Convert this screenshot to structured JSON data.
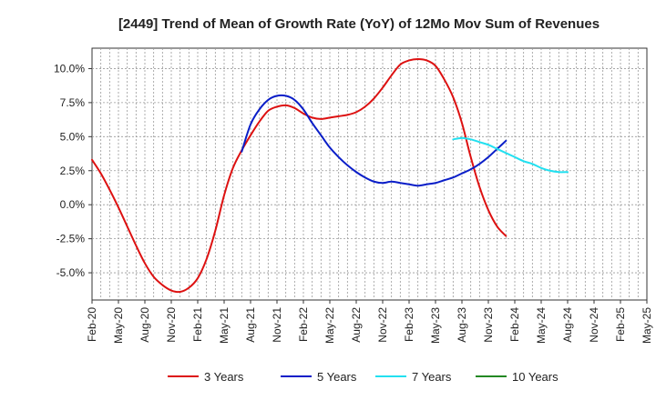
{
  "chart_data": {
    "type": "line",
    "title": "[2449]  Trend of Mean of Growth Rate (YoY) of 12Mo Mov Sum of Revenues",
    "xlabel": "",
    "ylabel": "",
    "ylim": [
      -7.0,
      11.5
    ],
    "y_ticks": [
      {
        "value": -5.0,
        "label": "-5.0%"
      },
      {
        "value": -2.5,
        "label": "-2.5%"
      },
      {
        "value": 0.0,
        "label": "0.0%"
      },
      {
        "value": 2.5,
        "label": "2.5%"
      },
      {
        "value": 5.0,
        "label": "5.0%"
      },
      {
        "value": 7.5,
        "label": "7.5%"
      },
      {
        "value": 10.0,
        "label": "10.0%"
      }
    ],
    "x_range": [
      0,
      63
    ],
    "x_ticks": [
      {
        "index": 0,
        "label": "Feb-20"
      },
      {
        "index": 3,
        "label": "May-20"
      },
      {
        "index": 6,
        "label": "Aug-20"
      },
      {
        "index": 9,
        "label": "Nov-20"
      },
      {
        "index": 12,
        "label": "Feb-21"
      },
      {
        "index": 15,
        "label": "May-21"
      },
      {
        "index": 18,
        "label": "Aug-21"
      },
      {
        "index": 21,
        "label": "Nov-21"
      },
      {
        "index": 24,
        "label": "Feb-22"
      },
      {
        "index": 27,
        "label": "May-22"
      },
      {
        "index": 30,
        "label": "Aug-22"
      },
      {
        "index": 33,
        "label": "Nov-22"
      },
      {
        "index": 36,
        "label": "Feb-23"
      },
      {
        "index": 39,
        "label": "May-23"
      },
      {
        "index": 42,
        "label": "Aug-23"
      },
      {
        "index": 45,
        "label": "Nov-23"
      },
      {
        "index": 48,
        "label": "Feb-24"
      },
      {
        "index": 51,
        "label": "May-24"
      },
      {
        "index": 54,
        "label": "Aug-24"
      },
      {
        "index": 57,
        "label": "Nov-24"
      },
      {
        "index": 60,
        "label": "Feb-25"
      },
      {
        "index": 63,
        "label": "May-25"
      }
    ],
    "grid": true,
    "legend_position": "bottom",
    "series": [
      {
        "name": "3 Years",
        "color": "#dd1111",
        "start_index": 0,
        "values": [
          3.3,
          2.3,
          1.1,
          -0.2,
          -1.6,
          -3.0,
          -4.3,
          -5.3,
          -5.9,
          -6.3,
          -6.4,
          -6.1,
          -5.4,
          -4.0,
          -1.9,
          0.7,
          2.7,
          4.0,
          5.1,
          6.1,
          6.9,
          7.2,
          7.3,
          7.1,
          6.7,
          6.4,
          6.3,
          6.4,
          6.5,
          6.6,
          6.8,
          7.2,
          7.8,
          8.6,
          9.5,
          10.3,
          10.6,
          10.7,
          10.6,
          10.2,
          9.2,
          7.9,
          6.0,
          3.5,
          1.3,
          -0.4,
          -1.6,
          -2.3
        ]
      },
      {
        "name": "5 Years",
        "color": "#0a1ec8",
        "start_index": 17,
        "values": [
          3.9,
          5.9,
          7.0,
          7.7,
          8.0,
          8.0,
          7.7,
          7.0,
          6.0,
          5.1,
          4.2,
          3.5,
          2.9,
          2.4,
          2.0,
          1.7,
          1.6,
          1.7,
          1.6,
          1.5,
          1.4,
          1.5,
          1.6,
          1.8,
          2.0,
          2.3,
          2.6,
          3.0,
          3.5,
          4.1,
          4.7
        ]
      },
      {
        "name": "7 Years",
        "color": "#22e0f0",
        "start_index": 41,
        "values": [
          4.8,
          4.9,
          4.8,
          4.6,
          4.4,
          4.1,
          3.8,
          3.5,
          3.2,
          3.0,
          2.7,
          2.5,
          2.4,
          2.4
        ]
      },
      {
        "name": "10 Years",
        "color": "#228822",
        "start_index": 0,
        "values": []
      }
    ]
  }
}
